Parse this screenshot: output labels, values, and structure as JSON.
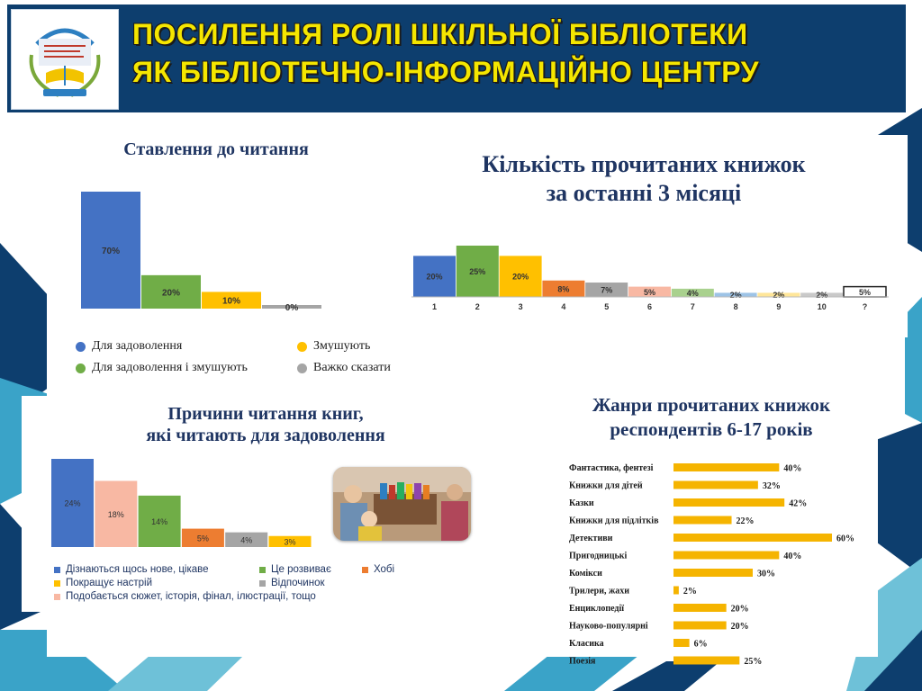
{
  "header": {
    "title_line1": "ПОСИЛЕННЯ РОЛІ ШКІЛЬНОЇ БІБЛІОТЕКИ",
    "title_line2": "ЯК БІБЛІОТЕЧНО-ІНФОРМАЦІЙНО ЦЕНТРУ"
  },
  "colors": {
    "navy": "#0d3e6e",
    "title_yellow": "#f5e600",
    "heading_blue": "#1f3562",
    "bar_yellow": "#f5b400"
  },
  "chart_data": [
    {
      "type": "bar",
      "title": "Ставлення до читання",
      "categories": [
        "Для задоволення",
        "Для задоволення і змушують",
        "Змушують",
        "Важко сказати"
      ],
      "values": [
        70,
        20,
        10,
        0
      ],
      "value_labels": [
        "70%",
        "20%",
        "10%",
        "0%"
      ],
      "colors": [
        "#4472c4",
        "#70ad47",
        "#ffc000",
        "#a5a5a5"
      ],
      "legend": [
        "Для задоволення",
        "Змушують",
        "Для задоволення і змушують",
        "Важко сказати"
      ],
      "legend_colors": [
        "#4472c4",
        "#ffc000",
        "#70ad47",
        "#a5a5a5"
      ],
      "ylim": [
        0,
        70
      ]
    },
    {
      "type": "bar",
      "title": "Кількість прочитаних книжок за останні 3 місяці",
      "title_line1": "Кількість прочитаних книжок",
      "title_line2": "за останні 3 місяці",
      "categories": [
        "1",
        "2",
        "3",
        "4",
        "5",
        "6",
        "7",
        "8",
        "9",
        "10",
        "?"
      ],
      "values": [
        20,
        25,
        20,
        8,
        7,
        5,
        4,
        2,
        2,
        2,
        5
      ],
      "value_labels": [
        "20%",
        "25%",
        "20%",
        "8%",
        "7%",
        "5%",
        "4%",
        "2%",
        "2%",
        "2%",
        "5%"
      ],
      "colors": [
        "#4472c4",
        "#70ad47",
        "#ffc000",
        "#ed7d31",
        "#a5a5a5",
        "#f8b8a3",
        "#a9d18e",
        "#9dc3e6",
        "#ffe699",
        "#c9c9c9",
        "#ffffff"
      ],
      "ylim": [
        0,
        25
      ]
    },
    {
      "type": "bar",
      "title": "Причини читання книг, які читають для задоволення",
      "title_line1": "Причини читання книг,",
      "title_line2": "які читають для задоволення",
      "categories": [
        "Дізнаються щось нове, цікаве",
        "Подобається сюжет, історія, фінал, ілюстрації, тощо",
        "Це розвиває",
        "Хобі",
        "Відпочинок",
        "Покращує настрій"
      ],
      "values": [
        24,
        18,
        14,
        5,
        4,
        3
      ],
      "value_labels": [
        "24%",
        "18%",
        "14%",
        "5%",
        "4%",
        "3%"
      ],
      "colors": [
        "#4472c4",
        "#f8b8a3",
        "#70ad47",
        "#ed7d31",
        "#a5a5a5",
        "#ffc000"
      ],
      "legend": [
        "Дізнаються щось нове, цікаве",
        "Це розвиває",
        "Хобі",
        "Покращує настрій",
        "Відпочинок",
        "Подобається сюжет, історія, фінал, ілюстрації, тощо"
      ],
      "legend_colors": [
        "#4472c4",
        "#70ad47",
        "#ed7d31",
        "#ffc000",
        "#a5a5a5",
        "#f8b8a3"
      ],
      "ylim": [
        0,
        24
      ]
    },
    {
      "type": "bar",
      "orientation": "horizontal",
      "title": "Жанри прочитаних книжок респондентів 6-17 років",
      "title_line1": "Жанри прочитаних книжок",
      "title_line2": "респондентів 6-17 років",
      "categories": [
        "Фантастика, фентезі",
        "Книжки для дітей",
        "Казки",
        "Книжки для підлітків",
        "Детективи",
        "Пригодницькі",
        "Комікси",
        "Трилери, жахи",
        "Енциклопедії",
        "Науково-популярні",
        "Класика",
        "Поезія"
      ],
      "values": [
        40,
        32,
        42,
        22,
        60,
        40,
        30,
        2,
        20,
        20,
        6,
        25
      ],
      "value_labels": [
        "40%",
        "32%",
        "42%",
        "22%",
        "60%",
        "40%",
        "30%",
        "2%",
        "20%",
        "20%",
        "6%",
        "25%"
      ],
      "color": "#f5b400",
      "xlim": [
        0,
        60
      ]
    }
  ]
}
